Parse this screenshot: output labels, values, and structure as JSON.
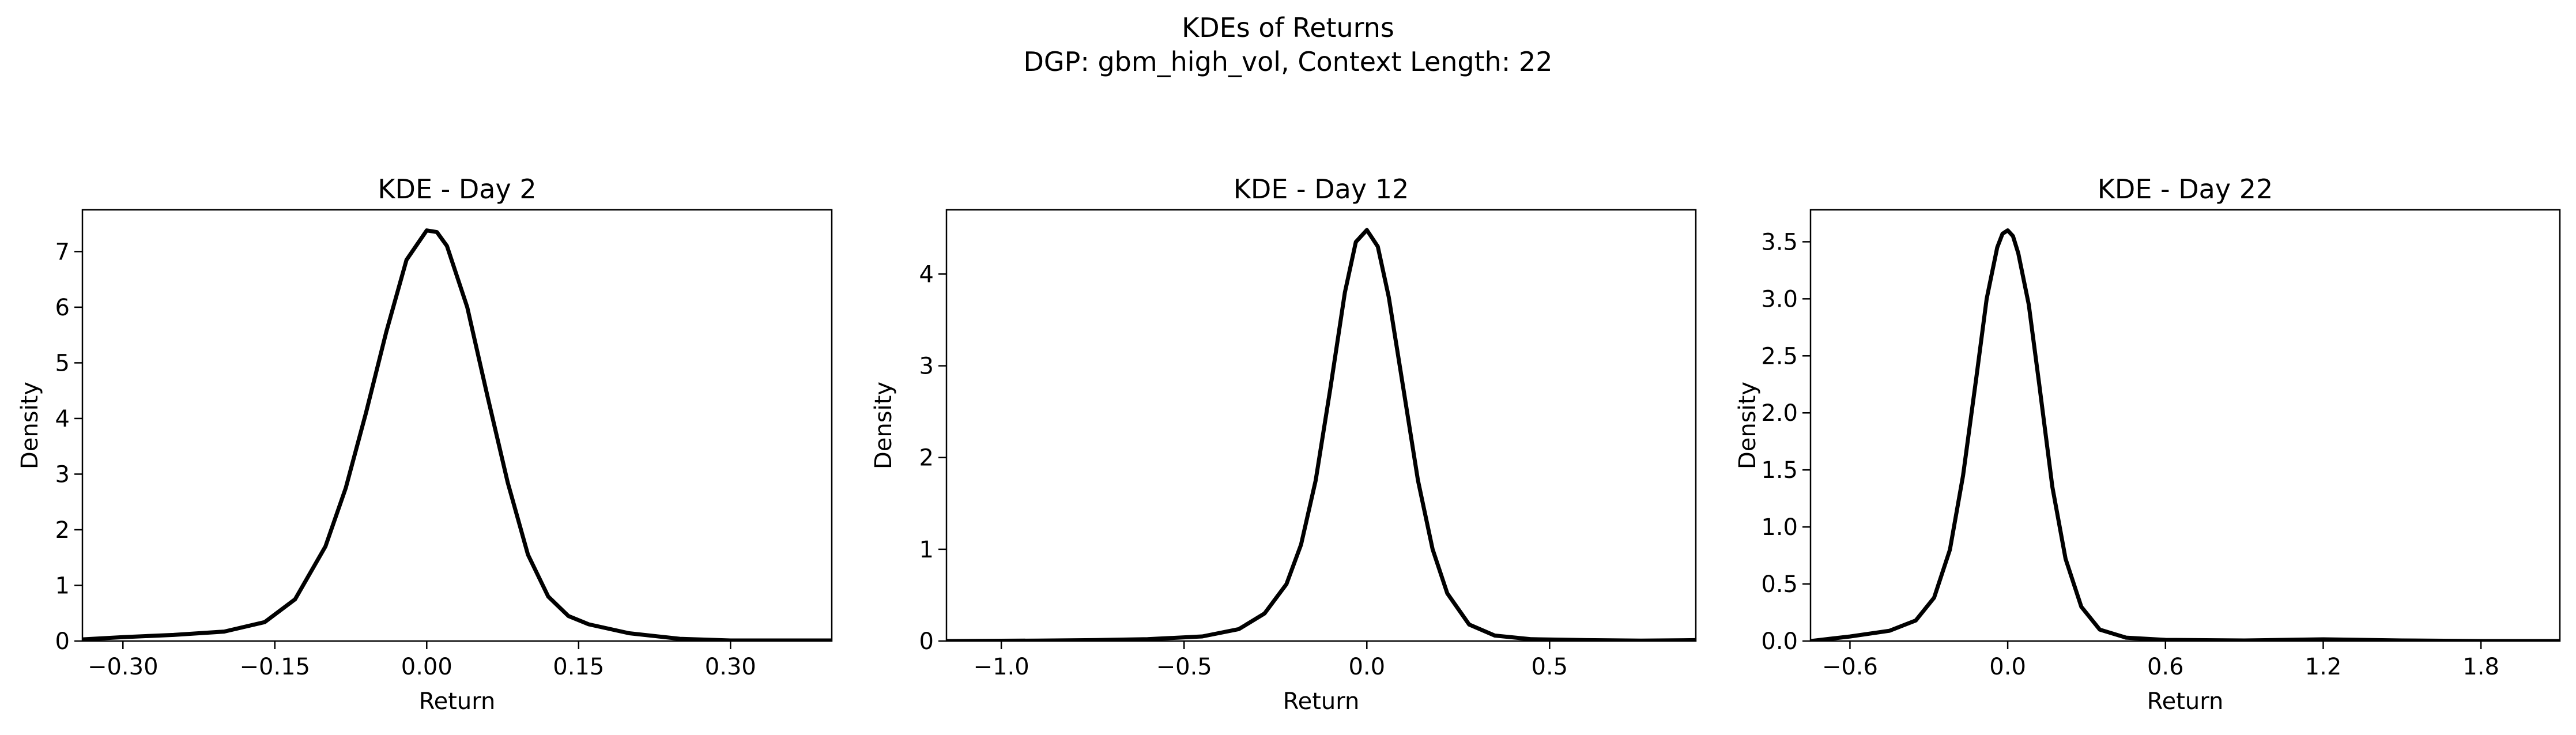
{
  "figure": {
    "title_line1": "KDEs of Returns",
    "title_line2": "DGP: gbm_high_vol, Context Length: 22"
  },
  "chart_data": [
    {
      "type": "line",
      "title": "KDE - Day 2",
      "xlabel": "Return",
      "ylabel": "Density",
      "xlim": [
        -0.34,
        0.4
      ],
      "ylim": [
        0,
        7.75
      ],
      "xticks": [
        -0.3,
        -0.15,
        0.0,
        0.15,
        0.3
      ],
      "xtick_labels": [
        "−0.30",
        "−0.15",
        "0.00",
        "0.15",
        "0.30"
      ],
      "yticks": [
        0,
        1,
        2,
        3,
        4,
        5,
        6,
        7
      ],
      "ytick_labels": [
        "0",
        "1",
        "2",
        "3",
        "4",
        "5",
        "6",
        "7"
      ],
      "line_color": "#000000",
      "series": [
        {
          "x": [
            -0.34,
            -0.3,
            -0.25,
            -0.2,
            -0.16,
            -0.13,
            -0.1,
            -0.08,
            -0.06,
            -0.04,
            -0.02,
            0.0,
            0.01,
            0.02,
            0.04,
            0.06,
            0.08,
            0.1,
            0.12,
            0.14,
            0.16,
            0.2,
            0.25,
            0.3,
            0.35,
            0.4
          ],
          "values": [
            0.03,
            0.07,
            0.11,
            0.17,
            0.34,
            0.75,
            1.7,
            2.75,
            4.1,
            5.55,
            6.85,
            7.38,
            7.35,
            7.1,
            6.0,
            4.4,
            2.85,
            1.55,
            0.8,
            0.45,
            0.3,
            0.14,
            0.04,
            0.01,
            0.01,
            0.01
          ]
        }
      ]
    },
    {
      "type": "line",
      "title": "KDE - Day 12",
      "xlabel": "Return",
      "ylabel": "Density",
      "xlim": [
        -1.15,
        0.9
      ],
      "ylim": [
        0,
        4.7
      ],
      "xticks": [
        -1.0,
        -0.5,
        0.0,
        0.5
      ],
      "xtick_labels": [
        "−1.0",
        "−0.5",
        "0.0",
        "0.5"
      ],
      "yticks": [
        0,
        1,
        2,
        3,
        4
      ],
      "ytick_labels": [
        "0",
        "1",
        "2",
        "3",
        "4"
      ],
      "line_color": "#000000",
      "series": [
        {
          "x": [
            -1.15,
            -0.9,
            -0.75,
            -0.6,
            -0.45,
            -0.35,
            -0.28,
            -0.22,
            -0.18,
            -0.14,
            -0.1,
            -0.06,
            -0.03,
            0.0,
            0.03,
            0.06,
            0.1,
            0.14,
            0.18,
            0.22,
            0.28,
            0.35,
            0.45,
            0.6,
            0.75,
            0.9
          ],
          "values": [
            0.0,
            0.005,
            0.01,
            0.02,
            0.05,
            0.13,
            0.3,
            0.62,
            1.05,
            1.75,
            2.75,
            3.8,
            4.35,
            4.48,
            4.3,
            3.75,
            2.75,
            1.75,
            1.0,
            0.52,
            0.18,
            0.06,
            0.02,
            0.01,
            0.005,
            0.01
          ]
        }
      ]
    },
    {
      "type": "line",
      "title": "KDE - Day 22",
      "xlabel": "Return",
      "ylabel": "Density",
      "xlim": [
        -0.75,
        2.1
      ],
      "ylim": [
        0,
        3.78
      ],
      "xticks": [
        -0.6,
        0.0,
        0.6,
        1.2,
        1.8
      ],
      "xtick_labels": [
        "−0.6",
        "0.0",
        "0.6",
        "1.2",
        "1.8"
      ],
      "yticks": [
        0.0,
        0.5,
        1.0,
        1.5,
        2.0,
        2.5,
        3.0,
        3.5
      ],
      "ytick_labels": [
        "0.0",
        "0.5",
        "1.0",
        "1.5",
        "2.0",
        "2.5",
        "3.0",
        "3.5"
      ],
      "line_color": "#000000",
      "series": [
        {
          "x": [
            -0.75,
            -0.6,
            -0.45,
            -0.35,
            -0.28,
            -0.22,
            -0.17,
            -0.12,
            -0.08,
            -0.04,
            -0.02,
            0.0,
            0.02,
            0.04,
            0.08,
            0.12,
            0.17,
            0.22,
            0.28,
            0.35,
            0.45,
            0.6,
            0.9,
            1.2,
            1.5,
            1.8,
            2.1
          ],
          "values": [
            0.0,
            0.04,
            0.09,
            0.18,
            0.38,
            0.8,
            1.45,
            2.3,
            3.0,
            3.45,
            3.57,
            3.6,
            3.55,
            3.4,
            2.95,
            2.25,
            1.35,
            0.72,
            0.3,
            0.1,
            0.03,
            0.01,
            0.005,
            0.015,
            0.005,
            0.0,
            0.0
          ]
        }
      ]
    }
  ]
}
